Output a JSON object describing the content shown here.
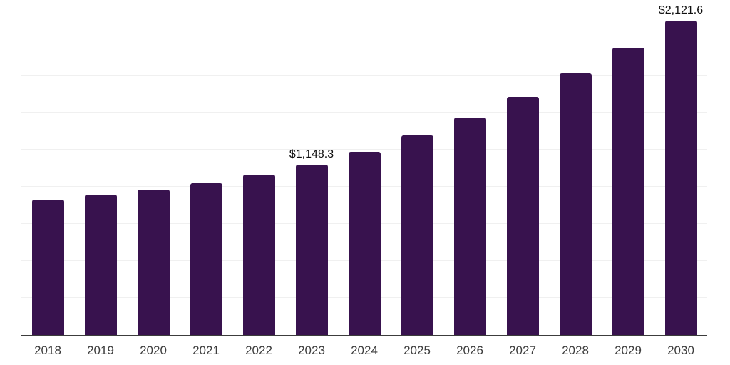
{
  "chart_data": {
    "type": "bar",
    "categories": [
      "2018",
      "2019",
      "2020",
      "2021",
      "2022",
      "2023",
      "2024",
      "2025",
      "2026",
      "2027",
      "2028",
      "2029",
      "2030"
    ],
    "values": [
      913,
      945,
      981,
      1024,
      1082,
      1148.3,
      1237,
      1346,
      1466,
      1606,
      1766,
      1939,
      2121.6
    ],
    "data_labels": {
      "2023": "$1,148.3",
      "2030": "$2,121.6"
    },
    "title": "",
    "xlabel": "",
    "ylabel": "",
    "ylim": [
      0,
      2250
    ],
    "gridline_step": 250,
    "grid": true,
    "legend": "none",
    "colors": {
      "bar": "#38124E",
      "gridline": "#f0f0f0",
      "axis_line": "#3c3c3c",
      "tick_label": "#3d3d3d",
      "data_label": "#0f0f0f",
      "background": "#ffffff"
    }
  }
}
